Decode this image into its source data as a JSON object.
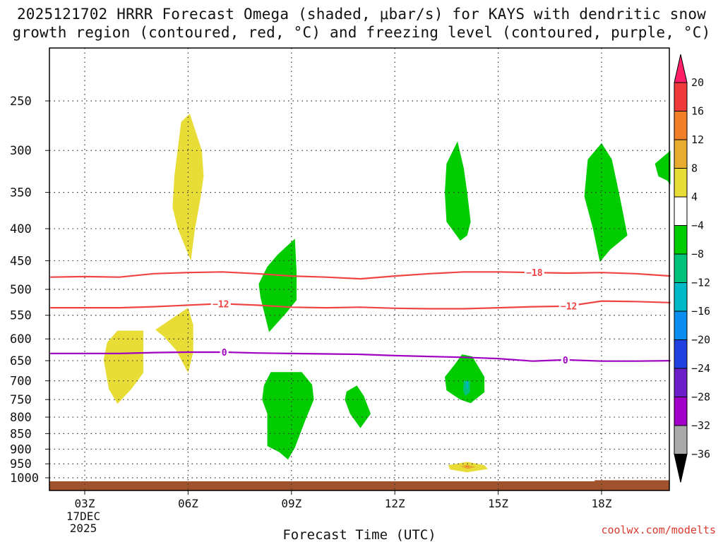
{
  "title_line1": "2025121702 HRRR Forecast Omega (shaded, μbar/s) for KAYS with dendritic snow",
  "title_line2": "growth region (contoured, red, °C) and freezing level (contoured, purple, °C)",
  "credit": "coolwx.com/modelts",
  "chart_data": {
    "type": "heatmap",
    "title": "2025121702 HRRR Forecast Omega (shaded, μbar/s) for KAYS with dendritic snow growth region (contoured, red, °C) and freezing level (contoured, purple, °C)",
    "xlabel": "Forecast Time (UTC)",
    "ylabel": "",
    "xlim": [
      2,
      20
    ],
    "ylim": [
      1020,
      200
    ],
    "x_ticks": [
      {
        "hour": 3,
        "label": "03Z"
      },
      {
        "hour": 6,
        "label": "06Z"
      },
      {
        "hour": 9,
        "label": "09Z"
      },
      {
        "hour": 12,
        "label": "12Z"
      },
      {
        "hour": 15,
        "label": "15Z"
      },
      {
        "hour": 18,
        "label": "18Z"
      }
    ],
    "date_label": [
      "17DEC",
      "2025"
    ],
    "y_ticks": [
      250,
      300,
      350,
      400,
      450,
      500,
      550,
      600,
      650,
      700,
      750,
      800,
      850,
      900,
      950,
      1000
    ],
    "colorbar": {
      "labels": [
        "20",
        "16",
        "12",
        "8",
        "4",
        "−4",
        "−8",
        "−12",
        "−16",
        "−20",
        "−24",
        "−28",
        "−32",
        "−36"
      ],
      "colors": [
        "#ff1f68",
        "#ee3a3a",
        "#f07f27",
        "#e8ac31",
        "#e8dd37",
        "#ffffff",
        "#00cc00",
        "#00c27a",
        "#00b8c6",
        "#0a8ff0",
        "#2040e0",
        "#6a1fc8",
        "#a000c8",
        "#aaaaaa",
        "#000000"
      ]
    },
    "omega_regions": [
      {
        "sign": "rising",
        "color": "#e8dd37",
        "pts": [
          [
            5.8,
            270
          ],
          [
            6.05,
            262
          ],
          [
            6.4,
            300
          ],
          [
            6.45,
            330
          ],
          [
            6.35,
            360
          ],
          [
            6.2,
            400
          ],
          [
            6.08,
            450
          ],
          [
            5.7,
            400
          ],
          [
            5.55,
            370
          ],
          [
            5.6,
            330
          ]
        ]
      },
      {
        "sign": "rising",
        "color": "#e8dd37",
        "pts": [
          [
            5.05,
            580
          ],
          [
            6.0,
            535
          ],
          [
            6.15,
            570
          ],
          [
            6.15,
            630
          ],
          [
            6.0,
            680
          ],
          [
            5.65,
            625
          ],
          [
            5.3,
            595
          ]
        ]
      },
      {
        "sign": "rising",
        "color": "#e8dd37",
        "pts": [
          [
            3.95,
            582
          ],
          [
            4.7,
            582
          ],
          [
            4.7,
            620
          ],
          [
            4.7,
            680
          ],
          [
            4.35,
            722
          ],
          [
            3.95,
            762
          ],
          [
            3.7,
            722
          ],
          [
            3.55,
            648
          ],
          [
            3.65,
            608
          ]
        ]
      },
      {
        "sign": "rising",
        "color": "#e8dd37",
        "pts": [
          [
            13.55,
            955
          ],
          [
            14.1,
            943
          ],
          [
            14.6,
            955
          ],
          [
            14.7,
            968
          ],
          [
            14.1,
            980
          ],
          [
            13.6,
            970
          ]
        ]
      },
      {
        "sign": "rising",
        "color": "#e8ac31",
        "pts": [
          [
            13.9,
            958
          ],
          [
            14.1,
            953
          ],
          [
            14.35,
            961
          ],
          [
            14.1,
            968
          ]
        ]
      },
      {
        "sign": "rising",
        "color": "#f07f27",
        "pts": [
          [
            14.05,
            958
          ],
          [
            14.15,
            958
          ],
          [
            14.15,
            962
          ],
          [
            14.05,
            962
          ]
        ]
      },
      {
        "sign": "sinking",
        "color": "#00cc00",
        "pts": [
          [
            8.6,
            440
          ],
          [
            9.1,
            415
          ],
          [
            9.15,
            470
          ],
          [
            9.15,
            520
          ],
          [
            8.85,
            545
          ],
          [
            8.35,
            585
          ],
          [
            8.1,
            515
          ],
          [
            8.05,
            490
          ],
          [
            8.3,
            460
          ]
        ]
      },
      {
        "sign": "sinking",
        "color": "#00cc00",
        "pts": [
          [
            8.4,
            678
          ],
          [
            9.3,
            678
          ],
          [
            9.6,
            710
          ],
          [
            9.65,
            750
          ],
          [
            9.4,
            810
          ],
          [
            9.1,
            895
          ],
          [
            8.9,
            935
          ],
          [
            8.65,
            910
          ],
          [
            8.3,
            890
          ],
          [
            8.3,
            790
          ],
          [
            8.15,
            750
          ],
          [
            8.2,
            712
          ]
        ]
      },
      {
        "sign": "sinking",
        "color": "#00cc00",
        "pts": [
          [
            10.9,
            712
          ],
          [
            11.1,
            740
          ],
          [
            11.3,
            790
          ],
          [
            11.0,
            833
          ],
          [
            10.7,
            790
          ],
          [
            10.55,
            750
          ],
          [
            10.6,
            728
          ]
        ]
      },
      {
        "sign": "sinking",
        "color": "#00cc00",
        "pts": [
          [
            13.5,
            315
          ],
          [
            13.82,
            290
          ],
          [
            14.0,
            320
          ],
          [
            14.1,
            350
          ],
          [
            14.2,
            390
          ],
          [
            14.1,
            410
          ],
          [
            13.9,
            418
          ],
          [
            13.5,
            390
          ],
          [
            13.45,
            350
          ]
        ]
      },
      {
        "sign": "sinking",
        "color": "#00cc00",
        "pts": [
          [
            13.95,
            635
          ],
          [
            14.25,
            640
          ],
          [
            14.6,
            690
          ],
          [
            14.6,
            730
          ],
          [
            14.2,
            760
          ],
          [
            13.9,
            750
          ],
          [
            13.5,
            725
          ],
          [
            13.45,
            690
          ],
          [
            13.75,
            658
          ]
        ]
      },
      {
        "sign": "sinking",
        "color": "#00c27a",
        "pts": [
          [
            14.0,
            700
          ],
          [
            14.18,
            700
          ],
          [
            14.18,
            730
          ],
          [
            14.05,
            740
          ],
          [
            13.98,
            725
          ]
        ]
      },
      {
        "sign": "sinking",
        "color": "#00b8c6",
        "pts": [
          [
            14.07,
            700
          ],
          [
            14.13,
            700
          ],
          [
            14.13,
            720
          ],
          [
            14.07,
            720
          ]
        ]
      },
      {
        "sign": "sinking",
        "color": "#00cc00",
        "pts": [
          [
            18.0,
            292
          ],
          [
            18.3,
            310
          ],
          [
            18.55,
            360
          ],
          [
            18.75,
            410
          ],
          [
            18.25,
            432
          ],
          [
            17.95,
            452
          ],
          [
            17.75,
            400
          ],
          [
            17.5,
            355
          ],
          [
            17.6,
            310
          ]
        ]
      },
      {
        "sign": "sinking",
        "color": "#00cc00",
        "pts": [
          [
            19.55,
            315
          ],
          [
            20.0,
            300
          ],
          [
            20.0,
            340
          ],
          [
            19.9,
            335
          ],
          [
            19.65,
            330
          ]
        ]
      }
    ],
    "contours": [
      {
        "name": "dendritic-top",
        "label": "−18",
        "color": "#ee4444",
        "label_at": 16.05,
        "pts": [
          [
            2.0,
            478
          ],
          [
            3.0,
            477
          ],
          [
            4.0,
            478
          ],
          [
            5.0,
            472
          ],
          [
            6.0,
            470
          ],
          [
            7.0,
            469
          ],
          [
            8.0,
            472
          ],
          [
            9.0,
            476
          ],
          [
            10.0,
            478
          ],
          [
            11.0,
            481
          ],
          [
            12.0,
            476
          ],
          [
            13.0,
            472
          ],
          [
            14.0,
            469
          ],
          [
            15.0,
            469
          ],
          [
            16.05,
            470
          ],
          [
            17.0,
            471
          ],
          [
            18.0,
            470
          ],
          [
            19.0,
            472
          ],
          [
            20.0,
            476
          ]
        ]
      },
      {
        "name": "dendritic-bottom",
        "label": "−12",
        "color": "#ee4444",
        "label_at": 6.95,
        "pts": [
          [
            2.0,
            535
          ],
          [
            3.0,
            535
          ],
          [
            4.0,
            535
          ],
          [
            5.0,
            533
          ],
          [
            6.0,
            530
          ],
          [
            6.95,
            527
          ],
          [
            8.0,
            530
          ],
          [
            9.0,
            534
          ],
          [
            10.0,
            535
          ],
          [
            11.0,
            534
          ],
          [
            12.0,
            536
          ],
          [
            13.0,
            537
          ],
          [
            14.0,
            537
          ],
          [
            15.0,
            535
          ],
          [
            16.0,
            533
          ],
          [
            17.0,
            532
          ],
          [
            18.0,
            522
          ],
          [
            19.0,
            523
          ],
          [
            20.0,
            525
          ]
        ]
      }
    ],
    "contour_extra_labels": [
      {
        "label": "−12",
        "hour": 17.05,
        "pres": 535
      }
    ],
    "freezing_level": {
      "label": "0",
      "color": "#a000c0",
      "label_at": 7.05,
      "extra_label_at": 16.95,
      "pts": [
        [
          2.0,
          633
        ],
        [
          3.0,
          633
        ],
        [
          4.0,
          633
        ],
        [
          5.0,
          631
        ],
        [
          6.0,
          630
        ],
        [
          7.05,
          630
        ],
        [
          8.0,
          632
        ],
        [
          9.0,
          633
        ],
        [
          10.0,
          634
        ],
        [
          11.0,
          635
        ],
        [
          12.0,
          638
        ],
        [
          13.0,
          640
        ],
        [
          14.0,
          642
        ],
        [
          15.0,
          645
        ],
        [
          16.0,
          651
        ],
        [
          16.95,
          648
        ],
        [
          18.0,
          651
        ],
        [
          19.0,
          651
        ],
        [
          20.0,
          650
        ]
      ]
    },
    "terrain": {
      "color": "#a0522d",
      "top_pres": 1013
    }
  }
}
